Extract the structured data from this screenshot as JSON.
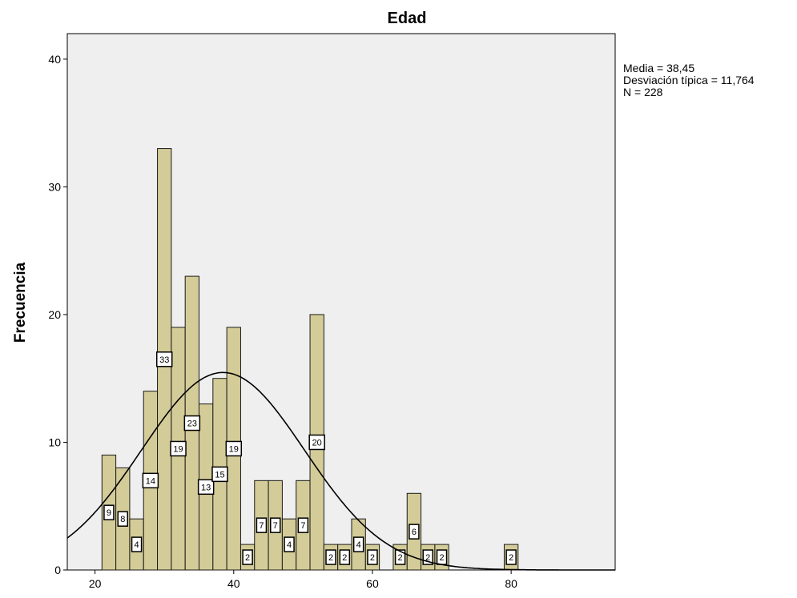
{
  "chart_data": {
    "type": "bar",
    "title": "Edad",
    "ylabel": "Frecuencia",
    "xlabel": "",
    "bin_width": 2,
    "bins": [
      {
        "x0": 21,
        "x1": 23,
        "count": 9
      },
      {
        "x0": 23,
        "x1": 25,
        "count": 8
      },
      {
        "x0": 25,
        "x1": 27,
        "count": 4
      },
      {
        "x0": 27,
        "x1": 29,
        "count": 14
      },
      {
        "x0": 29,
        "x1": 31,
        "count": 33
      },
      {
        "x0": 31,
        "x1": 33,
        "count": 19
      },
      {
        "x0": 33,
        "x1": 35,
        "count": 23
      },
      {
        "x0": 35,
        "x1": 37,
        "count": 13
      },
      {
        "x0": 37,
        "x1": 39,
        "count": 15
      },
      {
        "x0": 39,
        "x1": 41,
        "count": 19
      },
      {
        "x0": 41,
        "x1": 43,
        "count": 2
      },
      {
        "x0": 43,
        "x1": 45,
        "count": 7
      },
      {
        "x0": 45,
        "x1": 47,
        "count": 7
      },
      {
        "x0": 47,
        "x1": 49,
        "count": 4
      },
      {
        "x0": 49,
        "x1": 51,
        "count": 7
      },
      {
        "x0": 51,
        "x1": 53,
        "count": 20
      },
      {
        "x0": 53,
        "x1": 55,
        "count": 2
      },
      {
        "x0": 55,
        "x1": 57,
        "count": 2
      },
      {
        "x0": 57,
        "x1": 59,
        "count": 4
      },
      {
        "x0": 59,
        "x1": 61,
        "count": 2
      },
      {
        "x0": 63,
        "x1": 65,
        "count": 2
      },
      {
        "x0": 65,
        "x1": 67,
        "count": 6
      },
      {
        "x0": 67,
        "x1": 69,
        "count": 2
      },
      {
        "x0": 69,
        "x1": 71,
        "count": 2
      },
      {
        "x0": 79,
        "x1": 81,
        "count": 2
      }
    ],
    "xlim": [
      16,
      95
    ],
    "ylim": [
      0,
      42
    ],
    "x_ticks": [
      20,
      40,
      60,
      80
    ],
    "y_ticks": [
      0,
      10,
      20,
      30,
      40
    ],
    "normal_curve": {
      "mean": 38.45,
      "sd": 11.764,
      "n": 228
    },
    "colors": {
      "bar_fill": "#d4cc98",
      "bar_stroke": "#1a1a1a",
      "plot_bg": "#efefef",
      "curve": "#000000"
    },
    "grid": false,
    "legend": "none"
  },
  "stats": {
    "mean": "Media = 38,45",
    "sd": "Desviación típica = 11,764",
    "n": "N = 228"
  }
}
